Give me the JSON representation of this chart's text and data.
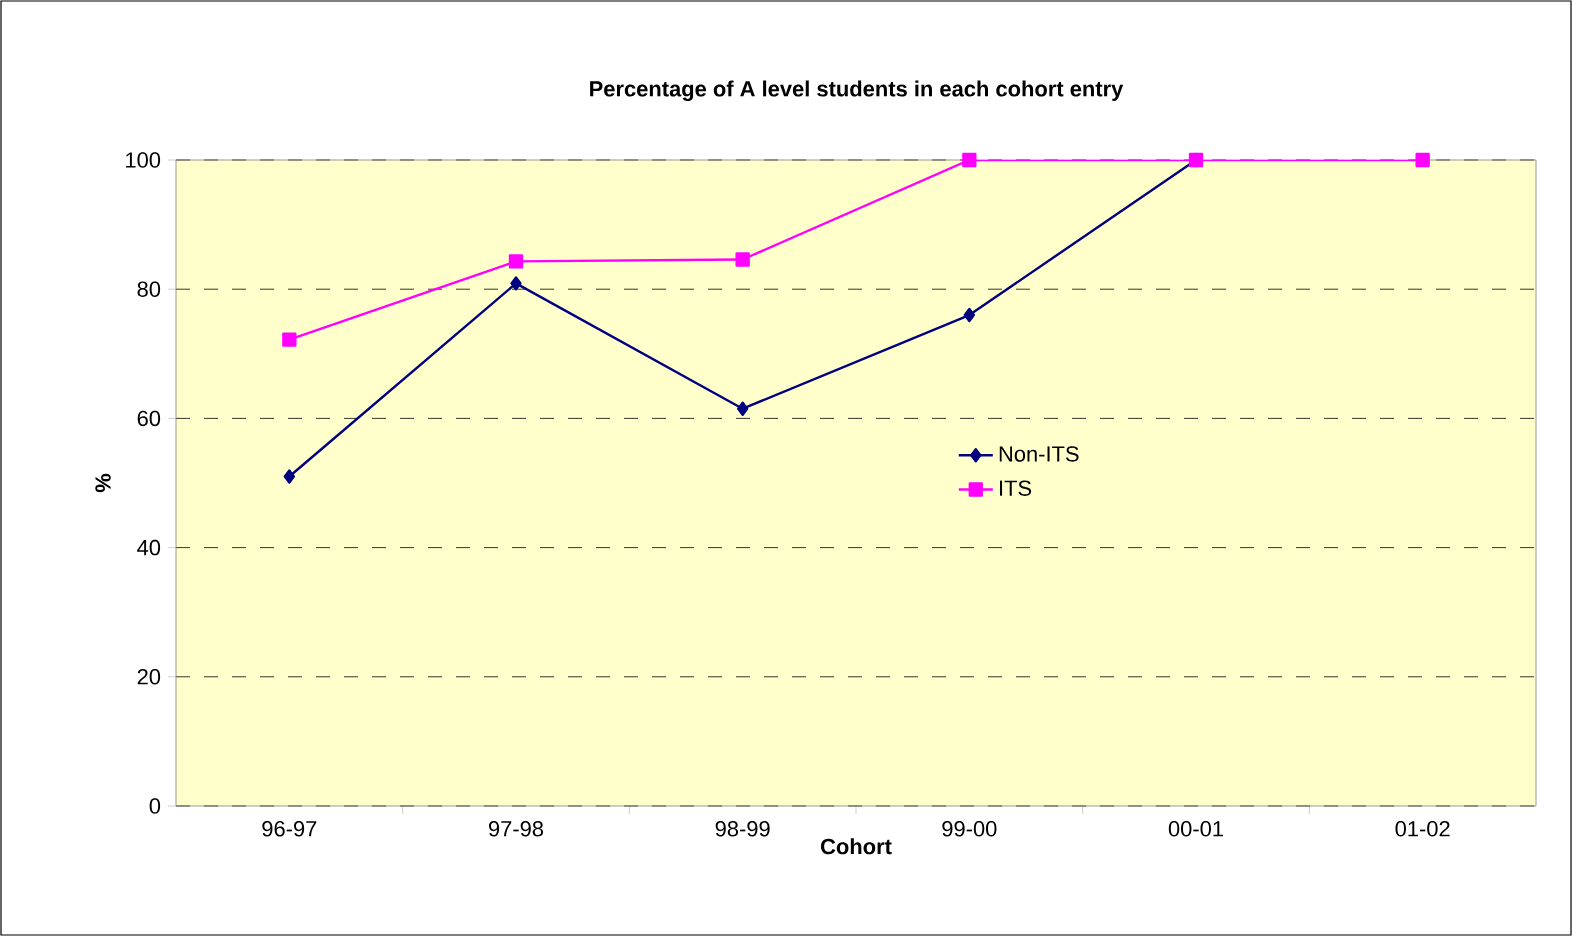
{
  "chart_data": {
    "type": "line",
    "title": "Percentage of A level students in each cohort entry",
    "xlabel": "Cohort",
    "ylabel": "%",
    "categories": [
      "96-97",
      "97-98",
      "98-99",
      "99-00",
      "00-01",
      "01-02"
    ],
    "series": [
      {
        "name": "Non-ITS",
        "color": "#000080",
        "marker": "diamond",
        "values": [
          51.0,
          80.9,
          61.5,
          76.0,
          100,
          null
        ]
      },
      {
        "name": "ITS",
        "color": "#ff00ff",
        "marker": "square",
        "values": [
          72.2,
          84.3,
          84.6,
          100,
          100,
          100
        ]
      }
    ],
    "ylim": [
      0,
      100
    ],
    "yticks": [
      0,
      20,
      40,
      60,
      80,
      100
    ],
    "grid": "y",
    "legend": "center",
    "line_style": "solid"
  }
}
